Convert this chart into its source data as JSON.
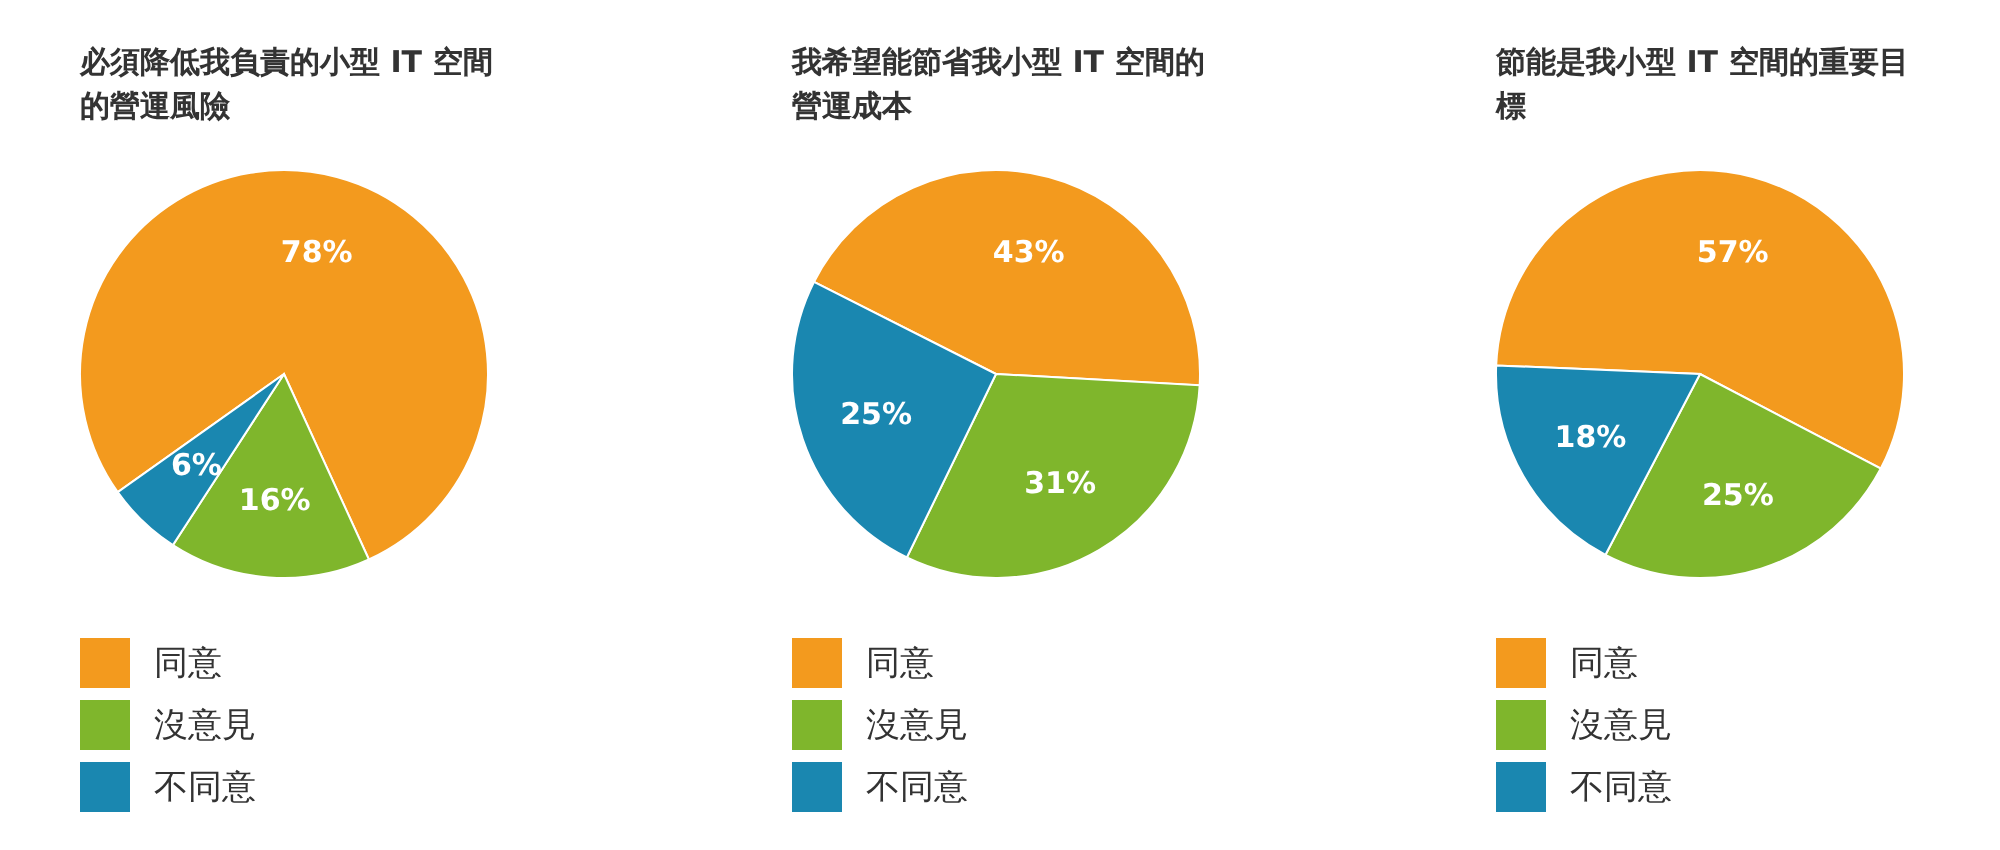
{
  "chart_data": [
    {
      "type": "pie",
      "title": "必須降低我負責的小型 IT 空間的營運風險",
      "categories": [
        "同意",
        "沒意見",
        "不同意"
      ],
      "values": [
        78,
        16,
        6
      ],
      "value_labels": [
        "78%",
        "16%",
        "6%"
      ],
      "colors": [
        "#f39a1e",
        "#7fb62c",
        "#1a87b0"
      ],
      "legend": "bottom"
    },
    {
      "type": "pie",
      "title": "我希望能節省我小型 IT 空間的營運成本",
      "categories": [
        "同意",
        "沒意見",
        "不同意"
      ],
      "values": [
        43,
        31,
        25
      ],
      "value_labels": [
        "43%",
        "31%",
        "25%"
      ],
      "colors": [
        "#f39a1e",
        "#7fb62c",
        "#1a87b0"
      ],
      "legend": "bottom"
    },
    {
      "type": "pie",
      "title": "節能是我小型 IT 空間的重要目標",
      "categories": [
        "同意",
        "沒意見",
        "不同意"
      ],
      "values": [
        57,
        25,
        18
      ],
      "value_labels": [
        "57%",
        "25%",
        "18%"
      ],
      "colors": [
        "#f39a1e",
        "#7fb62c",
        "#1a87b0"
      ],
      "legend": "bottom"
    }
  ]
}
